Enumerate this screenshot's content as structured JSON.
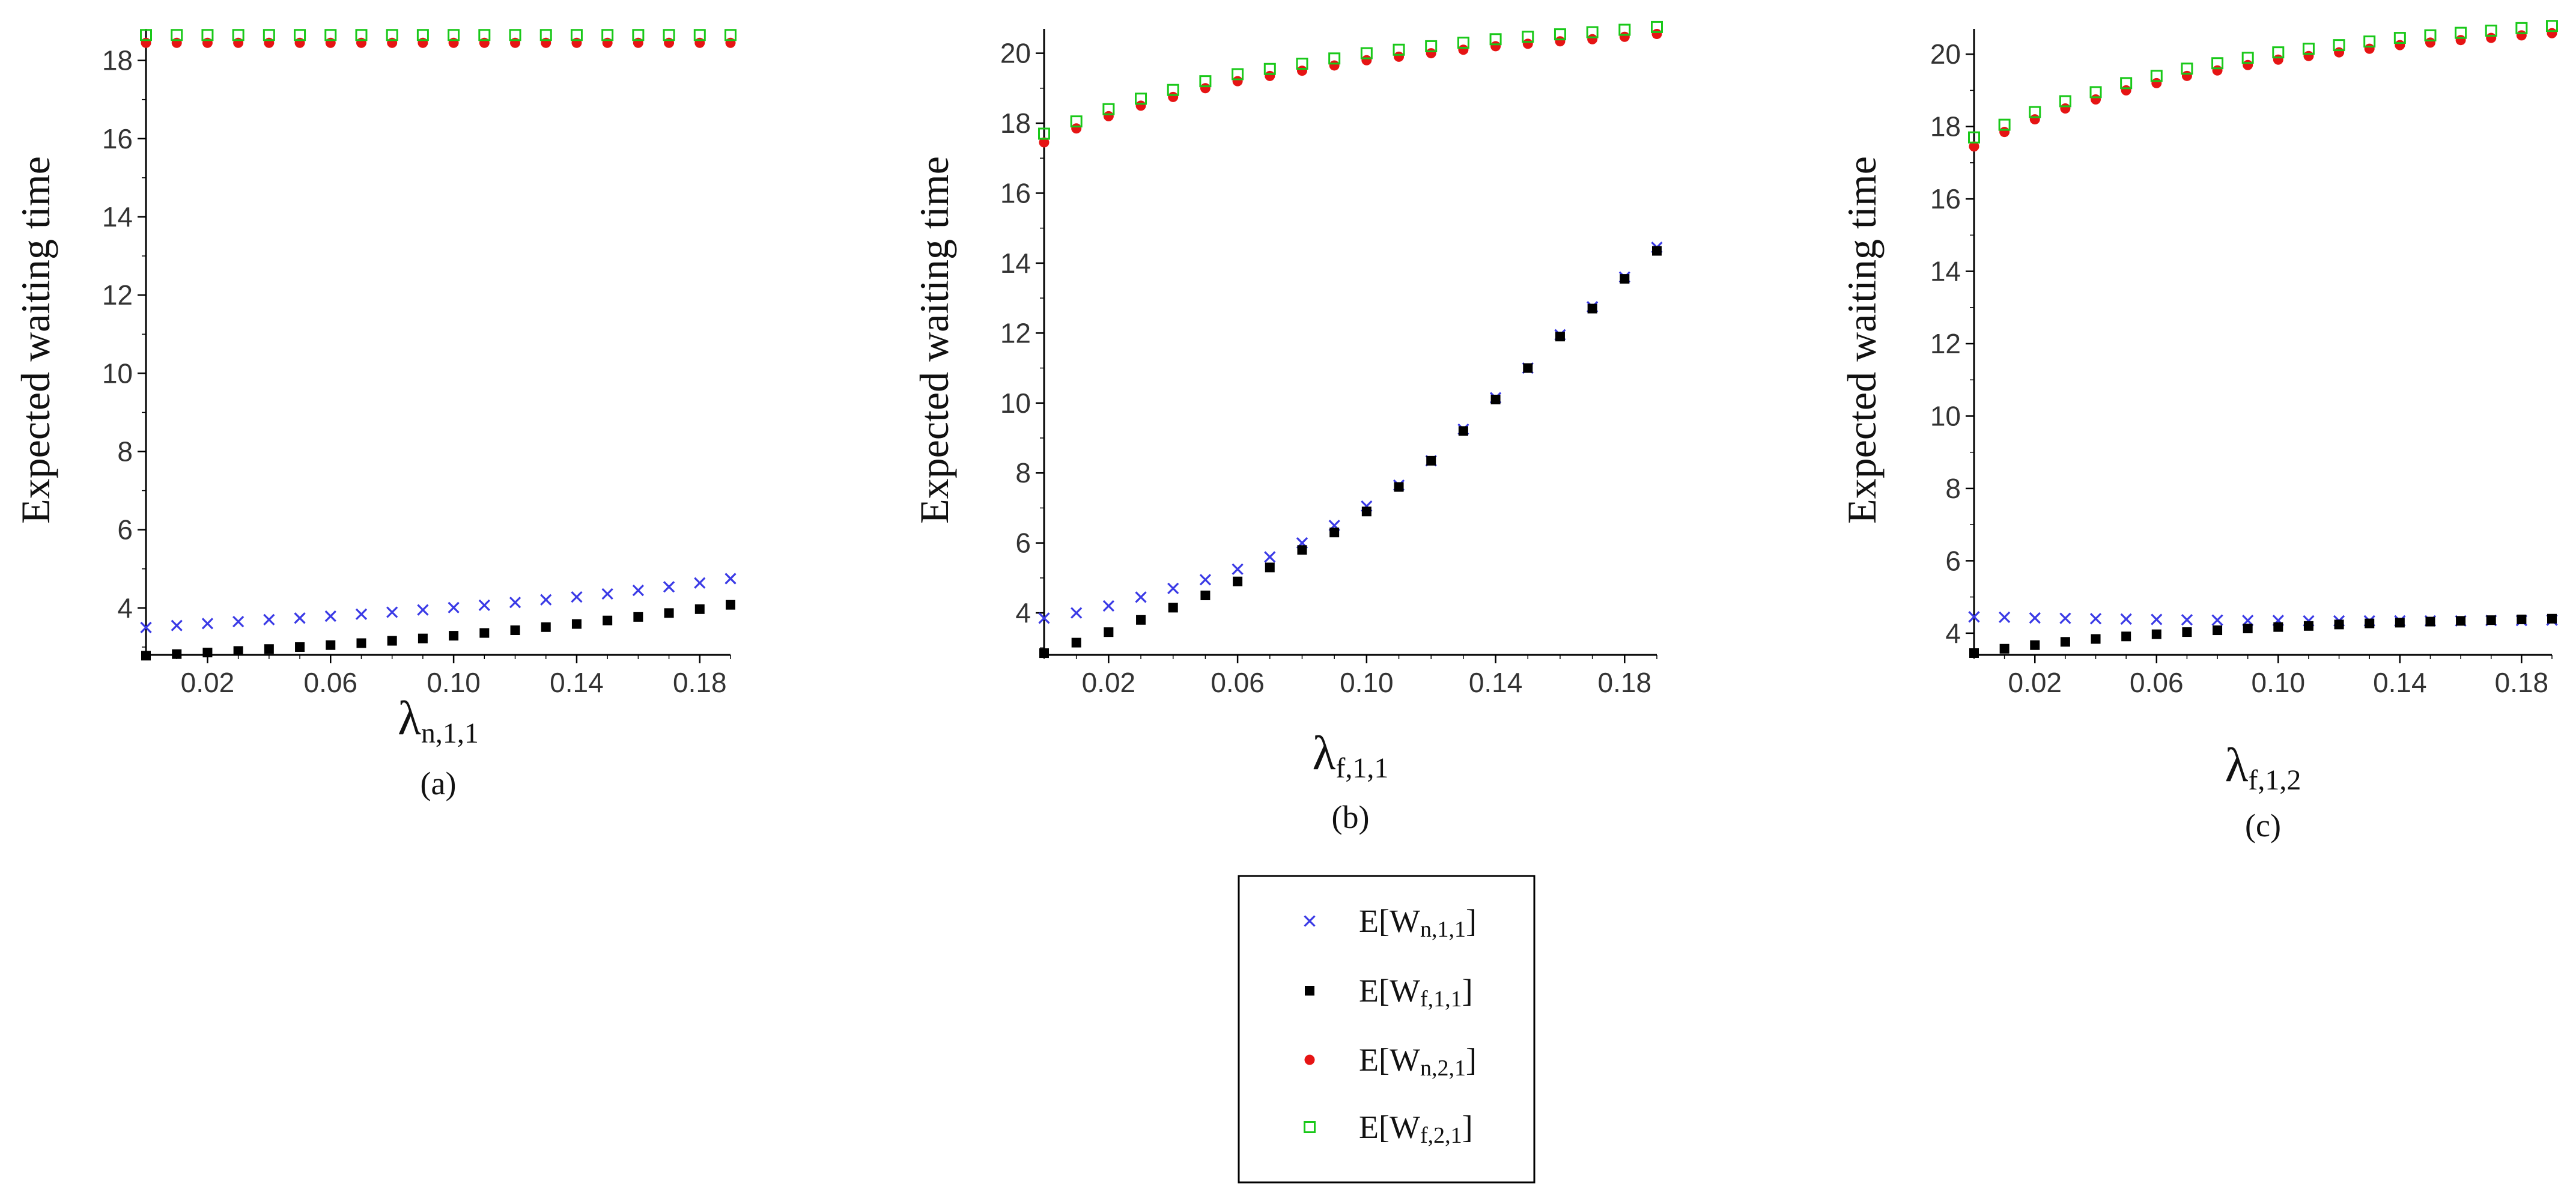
{
  "chart_data": [
    {
      "type": "scatter",
      "caption": "(a)",
      "ylabel": "Expected waiting time",
      "xlabel_main": "λ",
      "xlabel_sub": "n,1,1",
      "xlim": [
        0.0,
        0.19
      ],
      "ylim": [
        2.8,
        18.9
      ],
      "xticks": [
        "0.02",
        "0.06",
        "0.10",
        "0.14",
        "0.18"
      ],
      "xtick_values": [
        0.02,
        0.06,
        0.1,
        0.14,
        0.18
      ],
      "yticks": [
        "4",
        "6",
        "8",
        "10",
        "12",
        "14",
        "16",
        "18"
      ],
      "ytick_values": [
        4,
        6,
        8,
        10,
        12,
        14,
        16,
        18
      ],
      "x": [
        0.0,
        0.01,
        0.02,
        0.03,
        0.04,
        0.05,
        0.06,
        0.07,
        0.08,
        0.09,
        0.1,
        0.11,
        0.12,
        0.13,
        0.14,
        0.15,
        0.16,
        0.17,
        0.18,
        0.19
      ],
      "series": [
        {
          "name": "E[W n,1,1]",
          "marker": "cross",
          "values": [
            3.5,
            3.55,
            3.6,
            3.65,
            3.7,
            3.74,
            3.79,
            3.84,
            3.89,
            3.95,
            4.01,
            4.07,
            4.14,
            4.21,
            4.28,
            4.36,
            4.45,
            4.54,
            4.64,
            4.75
          ]
        },
        {
          "name": "E[W f,1,1]",
          "marker": "square",
          "values": [
            2.78,
            2.82,
            2.86,
            2.9,
            2.95,
            3.0,
            3.05,
            3.1,
            3.16,
            3.22,
            3.29,
            3.36,
            3.43,
            3.51,
            3.59,
            3.68,
            3.77,
            3.87,
            3.97,
            4.08
          ]
        },
        {
          "name": "E[W n,2,1]",
          "marker": "circle",
          "values": [
            18.45,
            18.45,
            18.45,
            18.45,
            18.45,
            18.45,
            18.45,
            18.45,
            18.45,
            18.45,
            18.45,
            18.45,
            18.45,
            18.45,
            18.45,
            18.45,
            18.45,
            18.45,
            18.45,
            18.45
          ]
        },
        {
          "name": "E[W f,2,1]",
          "marker": "open-square",
          "values": [
            18.65,
            18.65,
            18.65,
            18.65,
            18.65,
            18.65,
            18.65,
            18.65,
            18.65,
            18.65,
            18.65,
            18.65,
            18.65,
            18.65,
            18.65,
            18.65,
            18.65,
            18.65,
            18.65,
            18.65
          ]
        }
      ]
    },
    {
      "type": "scatter",
      "caption": "(b)",
      "ylabel": "Expected waiting time",
      "xlabel_main": "λ",
      "xlabel_sub": "f,1,1",
      "xlim": [
        0.0,
        0.19
      ],
      "ylim": [
        2.8,
        20.8
      ],
      "xticks": [
        "0.02",
        "0.06",
        "0.10",
        "0.14",
        "0.18"
      ],
      "xtick_values": [
        0.02,
        0.06,
        0.1,
        0.14,
        0.18
      ],
      "yticks": [
        "4",
        "6",
        "8",
        "10",
        "12",
        "14",
        "16",
        "18",
        "20"
      ],
      "ytick_values": [
        4,
        6,
        8,
        10,
        12,
        14,
        16,
        18,
        20
      ],
      "x": [
        0.0,
        0.01,
        0.02,
        0.03,
        0.04,
        0.05,
        0.06,
        0.07,
        0.08,
        0.09,
        0.1,
        0.11,
        0.12,
        0.13,
        0.14,
        0.15,
        0.16,
        0.17,
        0.18,
        0.19
      ],
      "series": [
        {
          "name": "E[W n,1,1]",
          "marker": "cross",
          "values": [
            3.85,
            4.0,
            4.2,
            4.45,
            4.7,
            4.95,
            5.25,
            5.6,
            6.0,
            6.5,
            7.05,
            7.65,
            8.35,
            9.25,
            10.15,
            11.0,
            11.95,
            12.75,
            13.6,
            14.45
          ]
        },
        {
          "name": "E[W f,1,1]",
          "marker": "square",
          "values": [
            2.85,
            3.15,
            3.45,
            3.8,
            4.15,
            4.5,
            4.9,
            5.3,
            5.8,
            6.3,
            6.9,
            7.6,
            8.35,
            9.2,
            10.1,
            11.0,
            11.9,
            12.7,
            13.55,
            14.35
          ]
        },
        {
          "name": "E[W n,2,1]",
          "marker": "circle",
          "values": [
            17.45,
            17.85,
            18.2,
            18.5,
            18.75,
            19.0,
            19.2,
            19.35,
            19.5,
            19.65,
            19.8,
            19.9,
            20.0,
            20.1,
            20.2,
            20.27,
            20.34,
            20.4,
            20.47,
            20.55
          ]
        },
        {
          "name": "E[W f,2,1]",
          "marker": "open-square",
          "values": [
            17.7,
            18.05,
            18.4,
            18.7,
            18.95,
            19.2,
            19.4,
            19.55,
            19.7,
            19.85,
            20.0,
            20.1,
            20.2,
            20.3,
            20.4,
            20.47,
            20.54,
            20.6,
            20.67,
            20.75
          ]
        }
      ]
    },
    {
      "type": "scatter",
      "caption": "(c)",
      "ylabel": "Expected waiting time",
      "xlabel_main": "λ",
      "xlabel_sub": "f,1,2",
      "xlim": [
        0.0,
        0.19
      ],
      "ylim": [
        3.4,
        20.8
      ],
      "xticks": [
        "0.02",
        "0.06",
        "0.10",
        "0.14",
        "0.18"
      ],
      "xtick_values": [
        0.02,
        0.06,
        0.1,
        0.14,
        0.18
      ],
      "yticks": [
        "4",
        "6",
        "8",
        "10",
        "12",
        "14",
        "16",
        "18",
        "20"
      ],
      "ytick_values": [
        4,
        6,
        8,
        10,
        12,
        14,
        16,
        18,
        20
      ],
      "x": [
        0.0,
        0.01,
        0.02,
        0.03,
        0.04,
        0.05,
        0.06,
        0.07,
        0.08,
        0.09,
        0.1,
        0.11,
        0.12,
        0.13,
        0.14,
        0.15,
        0.16,
        0.17,
        0.18,
        0.19
      ],
      "series": [
        {
          "name": "E[W n,1,1]",
          "marker": "cross",
          "values": [
            4.45,
            4.44,
            4.42,
            4.41,
            4.4,
            4.39,
            4.38,
            4.37,
            4.36,
            4.35,
            4.35,
            4.34,
            4.34,
            4.34,
            4.34,
            4.34,
            4.34,
            4.35,
            4.35,
            4.36
          ]
        },
        {
          "name": "E[W f,1,1]",
          "marker": "square",
          "values": [
            3.45,
            3.57,
            3.67,
            3.76,
            3.84,
            3.91,
            3.97,
            4.03,
            4.08,
            4.13,
            4.17,
            4.2,
            4.24,
            4.27,
            4.29,
            4.32,
            4.34,
            4.36,
            4.38,
            4.4
          ]
        },
        {
          "name": "E[W n,2,1]",
          "marker": "circle",
          "values": [
            17.45,
            17.85,
            18.2,
            18.5,
            18.75,
            19.0,
            19.2,
            19.4,
            19.55,
            19.7,
            19.85,
            19.95,
            20.05,
            20.15,
            20.25,
            20.32,
            20.39,
            20.45,
            20.52,
            20.58
          ]
        },
        {
          "name": "E[W f,2,1]",
          "marker": "open-square",
          "values": [
            17.7,
            18.05,
            18.4,
            18.7,
            18.95,
            19.2,
            19.4,
            19.6,
            19.75,
            19.9,
            20.05,
            20.15,
            20.25,
            20.35,
            20.45,
            20.52,
            20.59,
            20.65,
            20.72,
            20.78
          ]
        }
      ]
    }
  ],
  "legend": {
    "entries": [
      {
        "prefix": "E[W",
        "sub": "n,1,1",
        "suffix": "]",
        "marker": "cross"
      },
      {
        "prefix": "E[W",
        "sub": "f,1,1",
        "suffix": "]",
        "marker": "square"
      },
      {
        "prefix": "E[W",
        "sub": "n,2,1",
        "suffix": "]",
        "marker": "circle"
      },
      {
        "prefix": "E[W",
        "sub": "f,2,1",
        "suffix": "]",
        "marker": "open-square"
      }
    ]
  },
  "colors": {
    "cross": "#3a3ae6",
    "square": "#000000",
    "circle": "#e61414",
    "open-square": "#19c819",
    "axis": "#000000",
    "text": "#111111"
  }
}
